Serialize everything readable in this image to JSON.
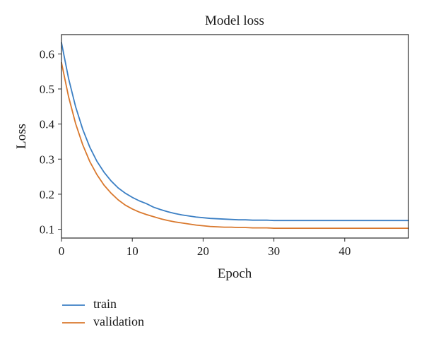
{
  "chart_data": {
    "type": "line",
    "title": "Model loss",
    "xlabel": "Epoch",
    "ylabel": "Loss",
    "xlim": [
      0,
      49
    ],
    "ylim": [
      0.075,
      0.655
    ],
    "xticks": [
      0,
      10,
      20,
      30,
      40
    ],
    "yticks": [
      0.1,
      0.2,
      0.3,
      0.4,
      0.5,
      0.6
    ],
    "grid": false,
    "legend_position": "bottom-left, below plot",
    "x": [
      0,
      1,
      2,
      3,
      4,
      5,
      6,
      7,
      8,
      9,
      10,
      11,
      12,
      13,
      14,
      15,
      16,
      17,
      18,
      19,
      20,
      21,
      22,
      23,
      24,
      25,
      26,
      27,
      28,
      29,
      30,
      31,
      32,
      33,
      34,
      35,
      36,
      37,
      38,
      39,
      40,
      41,
      42,
      43,
      44,
      45,
      46,
      47,
      48,
      49
    ],
    "series": [
      {
        "name": "train",
        "color": "#3b7fc4",
        "values": [
          0.632,
          0.53,
          0.449,
          0.385,
          0.334,
          0.294,
          0.263,
          0.238,
          0.218,
          0.203,
          0.191,
          0.181,
          0.173,
          0.163,
          0.156,
          0.15,
          0.145,
          0.141,
          0.138,
          0.135,
          0.133,
          0.131,
          0.13,
          0.129,
          0.128,
          0.127,
          0.127,
          0.126,
          0.126,
          0.126,
          0.125,
          0.125,
          0.125,
          0.125,
          0.125,
          0.125,
          0.125,
          0.125,
          0.125,
          0.125,
          0.125,
          0.125,
          0.125,
          0.125,
          0.125,
          0.125,
          0.125,
          0.125,
          0.125,
          0.125
        ]
      },
      {
        "name": "validation",
        "color": "#d9782d",
        "values": [
          0.575,
          0.478,
          0.401,
          0.341,
          0.293,
          0.256,
          0.226,
          0.203,
          0.184,
          0.169,
          0.158,
          0.149,
          0.142,
          0.136,
          0.13,
          0.125,
          0.121,
          0.118,
          0.115,
          0.112,
          0.11,
          0.108,
          0.107,
          0.106,
          0.106,
          0.105,
          0.105,
          0.104,
          0.104,
          0.104,
          0.103,
          0.103,
          0.103,
          0.103,
          0.103,
          0.103,
          0.103,
          0.103,
          0.103,
          0.103,
          0.103,
          0.103,
          0.103,
          0.103,
          0.103,
          0.103,
          0.103,
          0.103,
          0.103,
          0.103
        ]
      }
    ]
  }
}
